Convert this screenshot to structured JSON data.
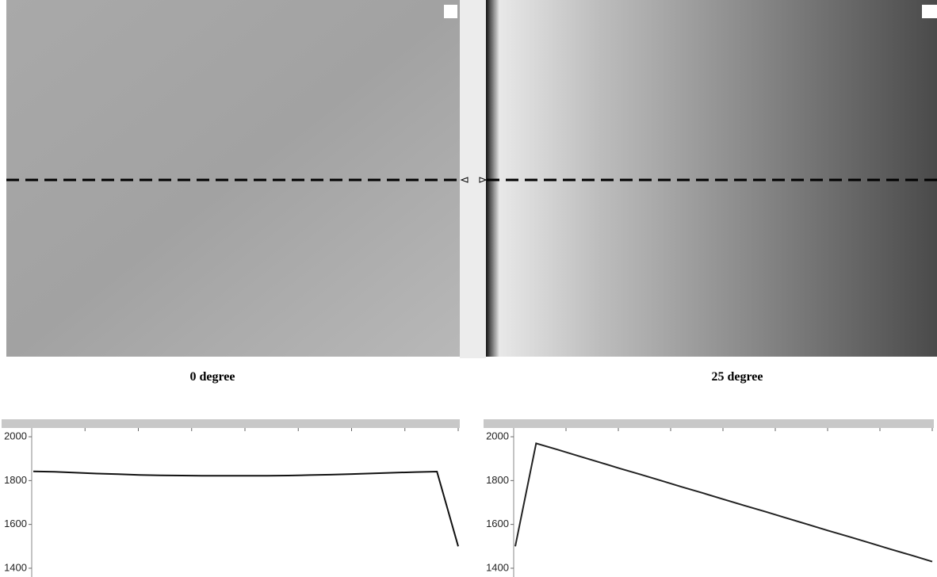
{
  "chart_data": [
    {
      "type": "line",
      "title": "0 degree",
      "values": [
        1842,
        1840,
        1836,
        1832,
        1829,
        1826,
        1824,
        1823,
        1822,
        1822,
        1822,
        1822,
        1823,
        1825,
        1827,
        1830,
        1833,
        1836,
        1839,
        1841,
        1500
      ],
      "color": "#111111",
      "ylim": [
        1360,
        2040
      ],
      "yticks": [
        1400,
        1600,
        1800,
        2000
      ]
    },
    {
      "type": "line",
      "title": "25 degree",
      "values": [
        1500,
        1970,
        1942,
        1913,
        1885,
        1856,
        1828,
        1800,
        1771,
        1743,
        1714,
        1686,
        1658,
        1629,
        1601,
        1572,
        1544,
        1516,
        1487,
        1459,
        1430
      ],
      "color": "#222222",
      "ylim": [
        1360,
        2040
      ],
      "yticks": [
        1400,
        1600,
        1800,
        2000
      ]
    }
  ]
}
